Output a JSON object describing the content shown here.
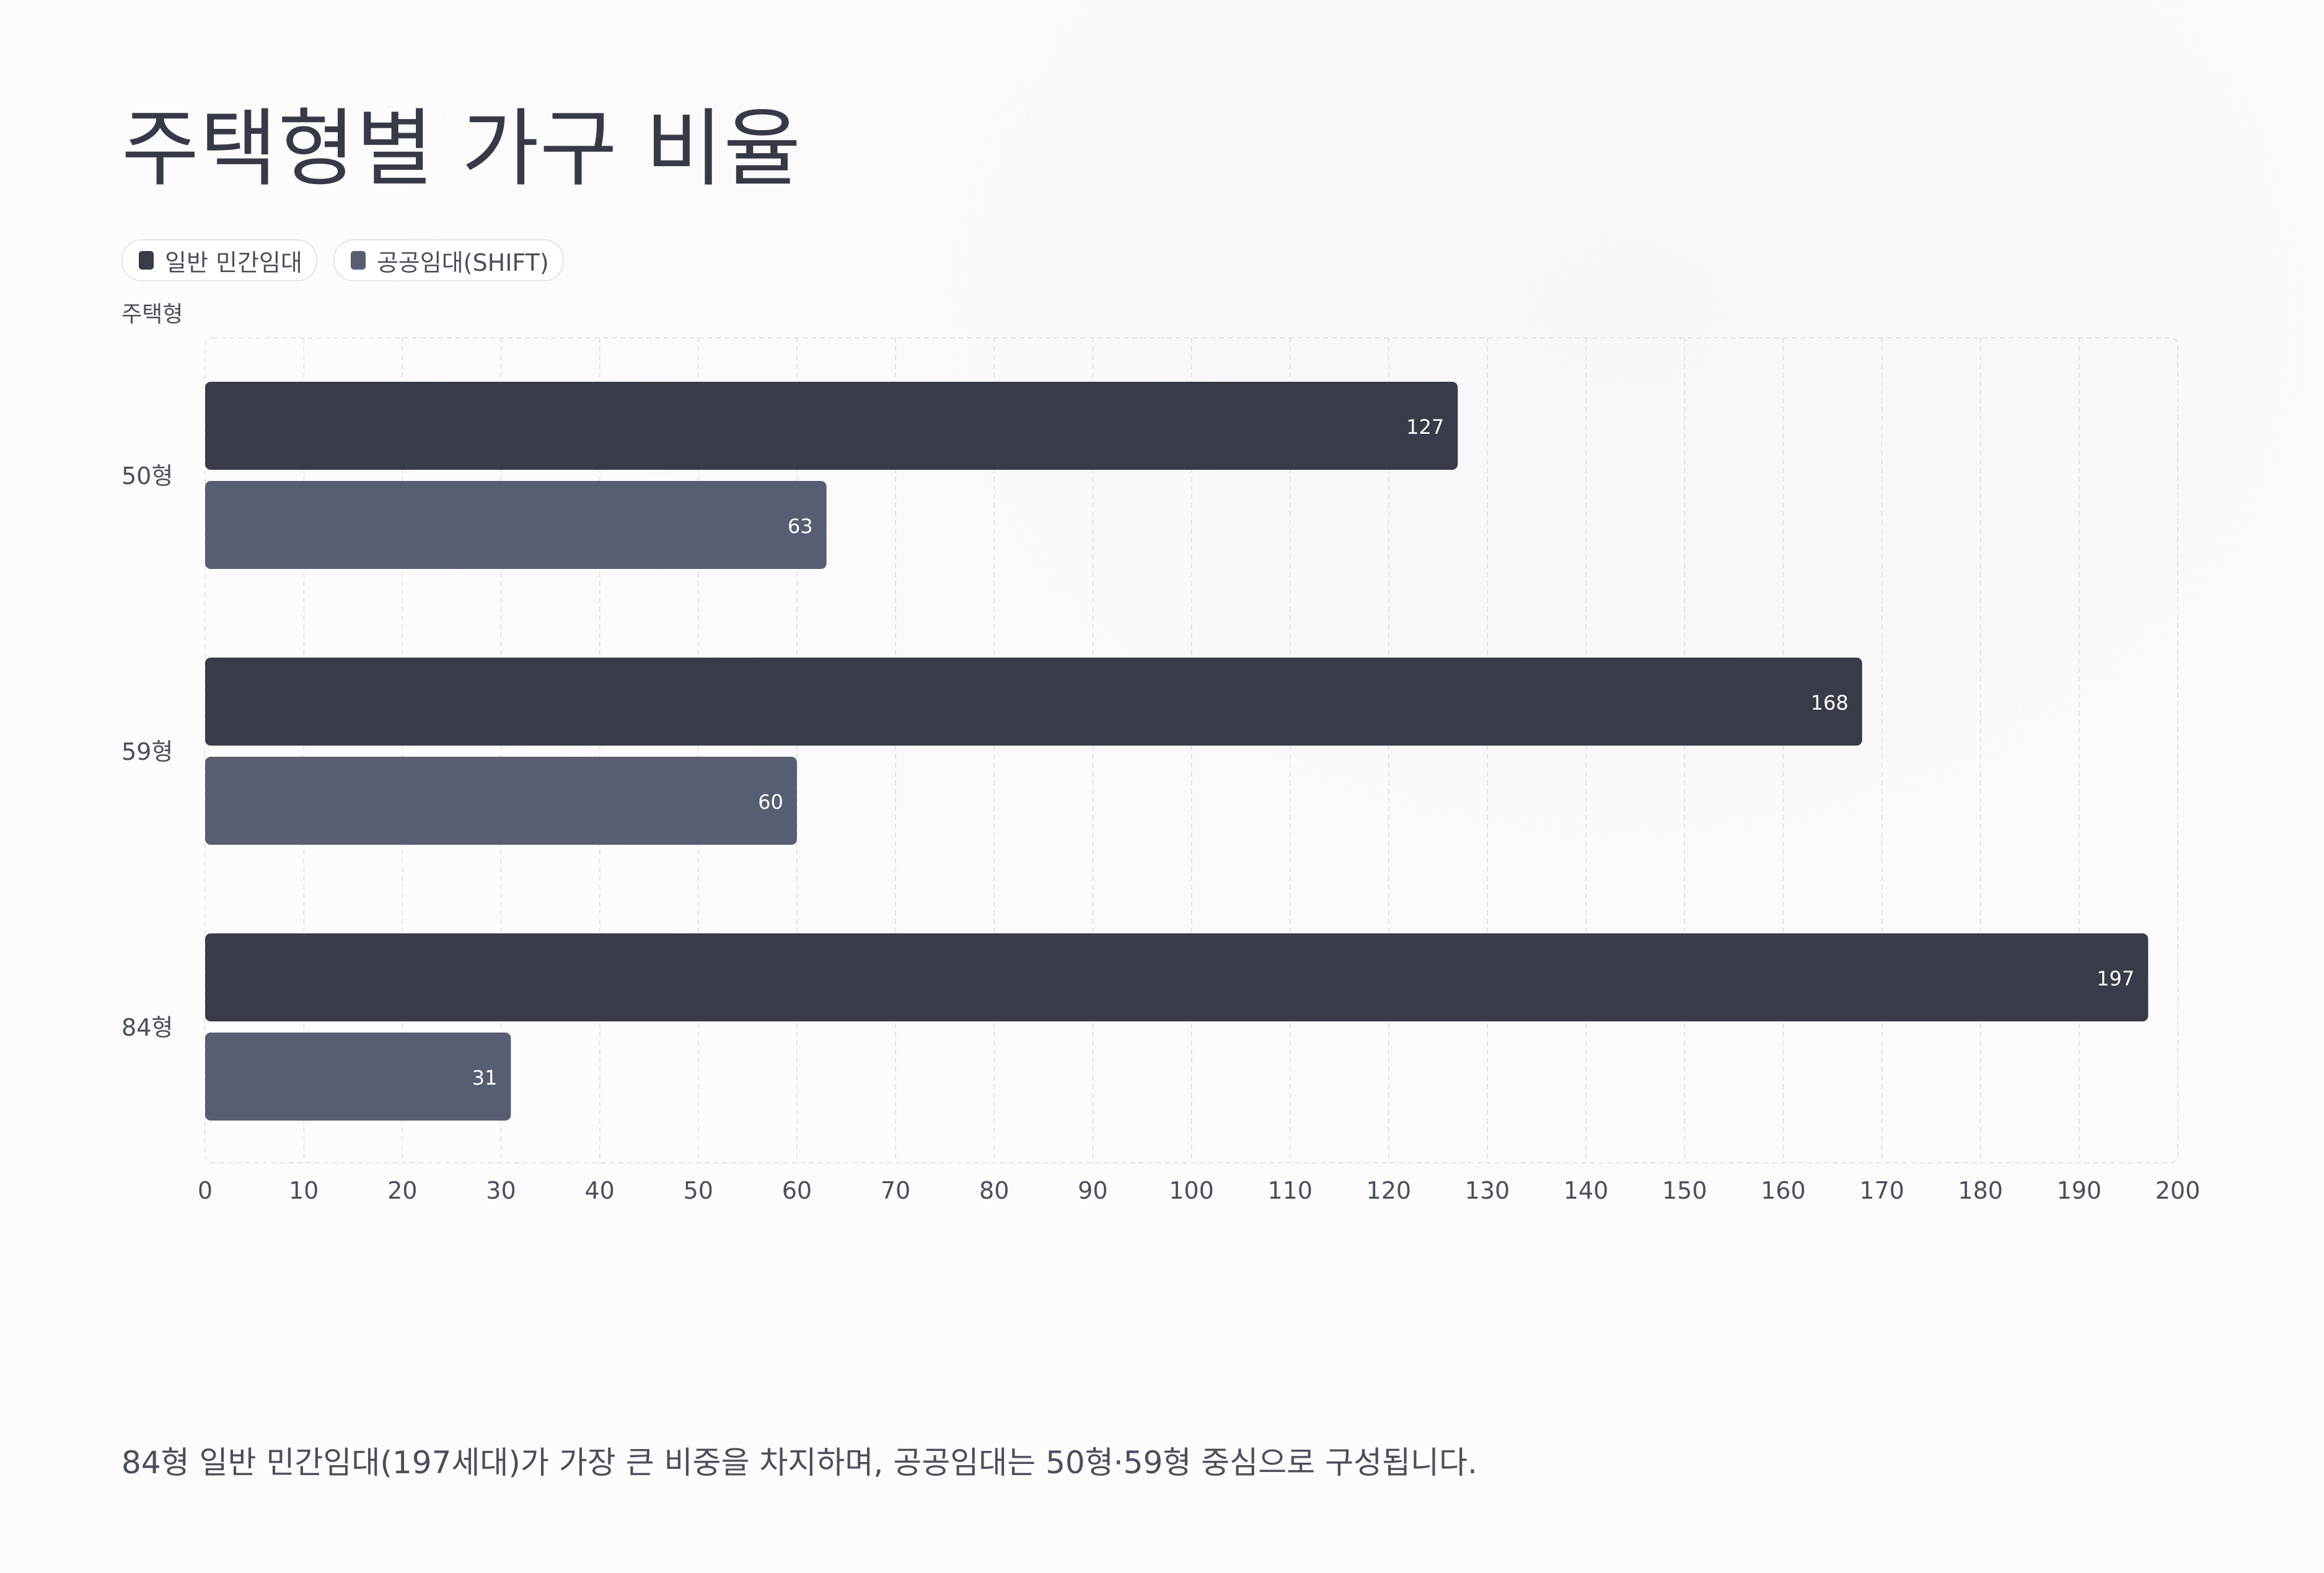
{
  "chart_data": {
    "type": "bar",
    "orientation": "horizontal",
    "title": "주택형별 가구 비율",
    "ylabel": "주택형",
    "xlabel": "",
    "categories": [
      "50형",
      "59형",
      "84형"
    ],
    "series": [
      {
        "name": "일반 민간임대",
        "color": "#383b48",
        "values": [
          127,
          168,
          197
        ]
      },
      {
        "name": "공공임대(SHIFT)",
        "color": "#585e71",
        "values": [
          63,
          60,
          31
        ]
      }
    ],
    "xlim": [
      0,
      200
    ],
    "xticks": [
      0,
      10,
      20,
      30,
      40,
      50,
      60,
      70,
      80,
      90,
      100,
      110,
      120,
      130,
      140,
      150,
      160,
      170,
      180,
      190,
      200
    ],
    "grid": true,
    "legend_position": "top-left",
    "data_labels": true
  },
  "footnote": "84형 일반 민간임대(197세대)가 가장 큰 비중을 차지하며, 공공임대는 50형·59형 중심으로 구성됩니다."
}
